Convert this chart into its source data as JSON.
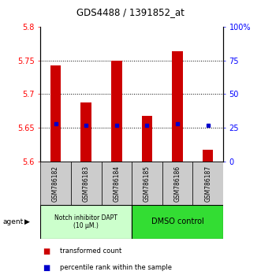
{
  "title": "GDS4488 / 1391852_at",
  "samples": [
    "GSM786182",
    "GSM786183",
    "GSM786184",
    "GSM786185",
    "GSM786186",
    "GSM786187"
  ],
  "bar_values": [
    5.743,
    5.688,
    5.75,
    5.668,
    5.763,
    5.618
  ],
  "bar_bottom": 5.6,
  "percentile_values": [
    5.656,
    5.654,
    5.654,
    5.654,
    5.656,
    5.654
  ],
  "ylim_left": [
    5.6,
    5.8
  ],
  "ylim_right": [
    0,
    100
  ],
  "yticks_left": [
    5.6,
    5.65,
    5.7,
    5.75,
    5.8
  ],
  "yticks_right": [
    0,
    25,
    50,
    75,
    100
  ],
  "ytick_labels_left": [
    "5.6",
    "5.65",
    "5.7",
    "5.75",
    "5.8"
  ],
  "ytick_labels_right": [
    "0",
    "25",
    "50",
    "75",
    "100%"
  ],
  "hlines": [
    5.65,
    5.7,
    5.75
  ],
  "bar_color": "#cc0000",
  "percentile_color": "#0000cc",
  "group1_label": "Notch inhibitor DAPT\n(10 μM.)",
  "group2_label": "DMSO control",
  "group1_color": "#ccffcc",
  "group2_color": "#33dd33",
  "group1_samples": 3,
  "group2_samples": 3,
  "legend_items": [
    "transformed count",
    "percentile rank within the sample"
  ],
  "agent_label": "agent",
  "bar_width": 0.35
}
